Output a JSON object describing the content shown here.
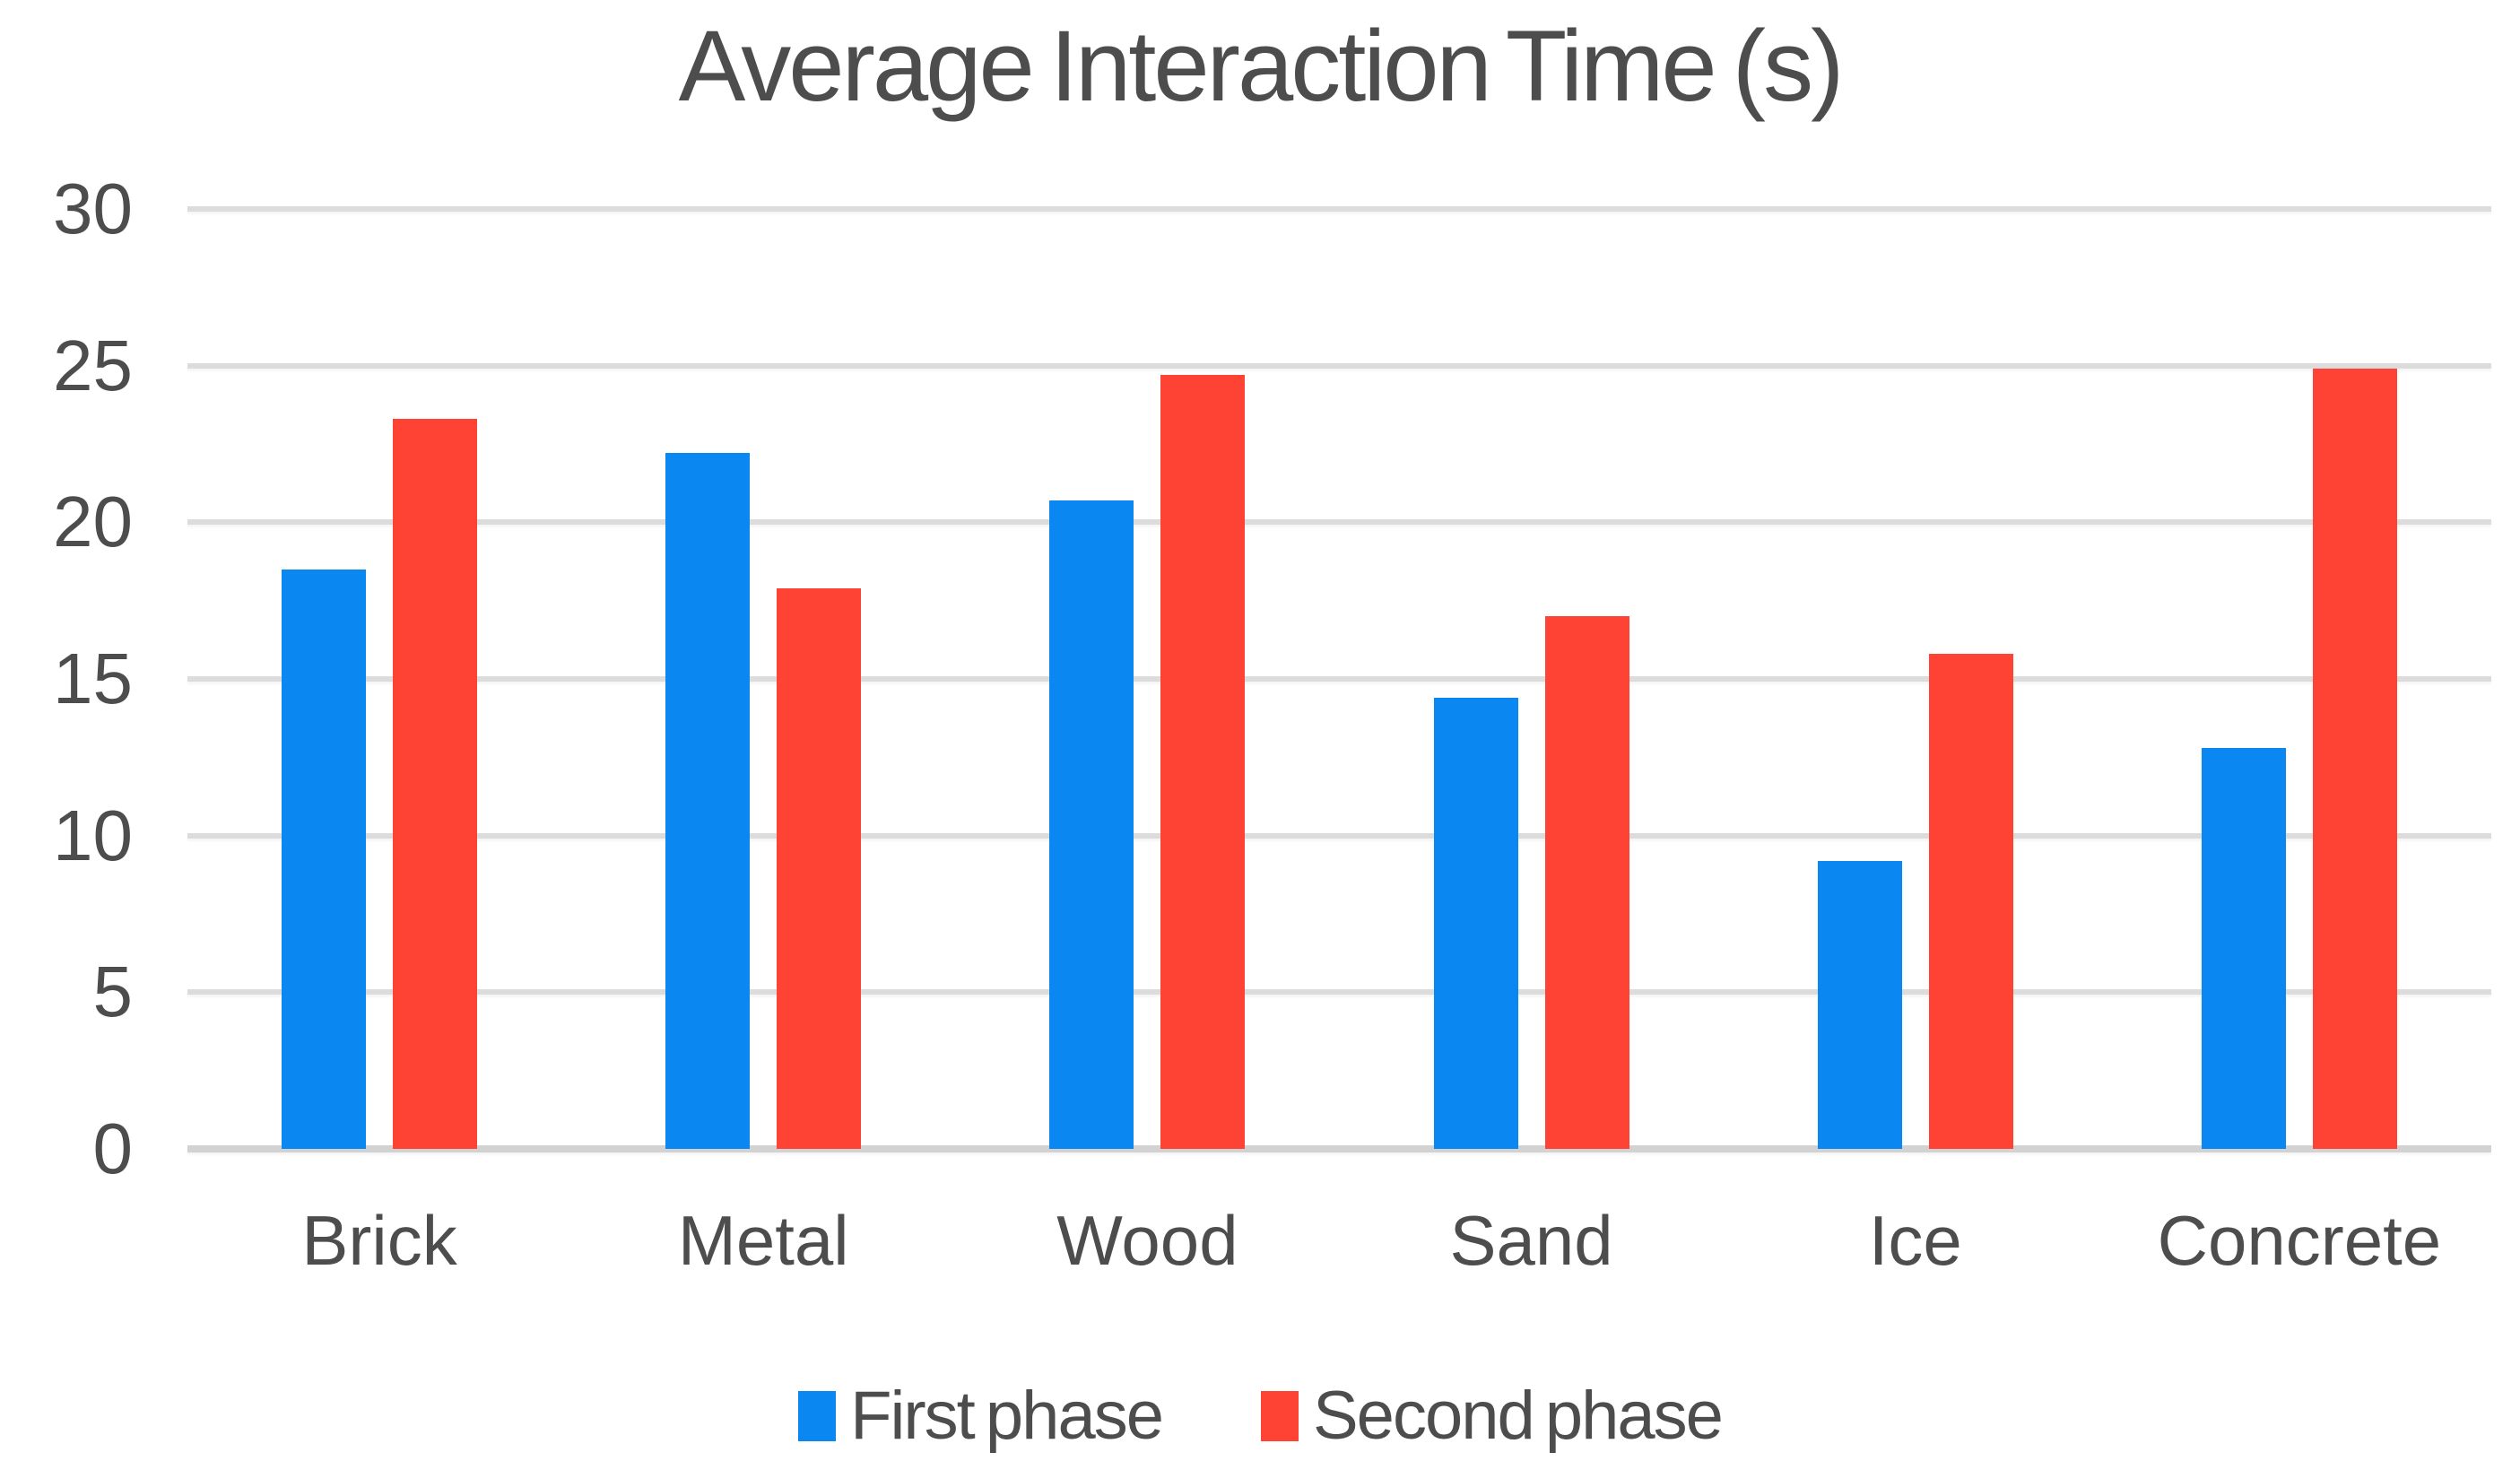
{
  "chart_data": {
    "type": "bar",
    "title": "Average Interaction Time (s)",
    "categories": [
      "Brick",
      "Metal",
      "Wood",
      "Sand",
      "Ice",
      "Concrete"
    ],
    "series": [
      {
        "name": "First phase",
        "color": "#0b87f2",
        "values": [
          18.5,
          22.2,
          20.7,
          14.4,
          9.2,
          12.8
        ]
      },
      {
        "name": "Second phase",
        "color": "#fe4233",
        "values": [
          23.3,
          17.9,
          24.7,
          17.0,
          15.8,
          24.9
        ]
      }
    ],
    "xlabel": "",
    "ylabel": "",
    "ylim": [
      0,
      30
    ],
    "yticks": [
      30,
      25,
      20,
      15,
      10,
      5,
      0
    ],
    "grid": true,
    "legend_position": "bottom"
  },
  "colors": {
    "text": "#4d4d4d",
    "gridline": "#dcdcdc",
    "baseline": "#d2d2d2",
    "background": "#ffffff"
  }
}
